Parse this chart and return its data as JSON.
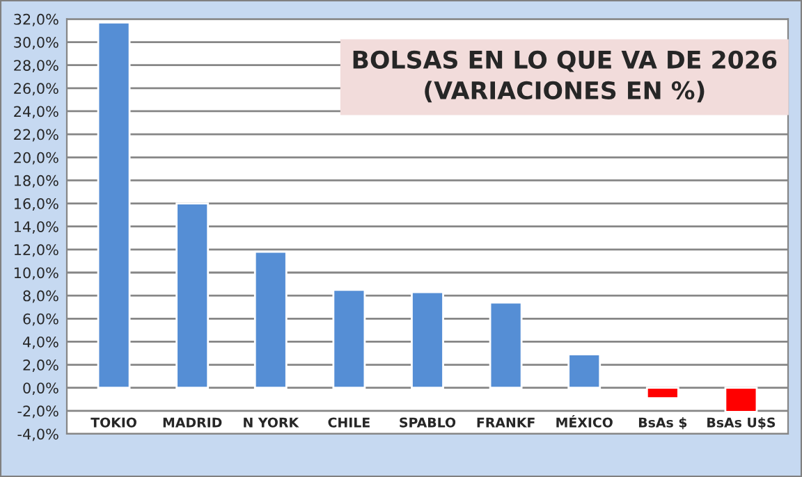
{
  "chart_data": {
    "type": "bar",
    "title": "BOLSAS EN LO QUE VA DE 2026\n(VARIACIONES EN %)",
    "categories": [
      "TOKIO",
      "MADRID",
      "N YORK",
      "CHILE",
      "SPABLO",
      "FRANKF",
      "MÉXICO",
      "BsAs $",
      "BsAs U$S"
    ],
    "values": [
      31.7,
      16.0,
      11.8,
      8.5,
      8.3,
      7.4,
      2.9,
      -0.9,
      -2.1
    ],
    "colors": [
      "#558ed5",
      "#558ed5",
      "#558ed5",
      "#558ed5",
      "#558ed5",
      "#558ed5",
      "#558ed5",
      "#ff0000",
      "#ff0000"
    ],
    "ylim": [
      -4,
      32
    ],
    "yticks": [
      {
        "value": -4,
        "label": "-4,0%"
      },
      {
        "value": -2,
        "label": "-2,0%"
      },
      {
        "value": 0,
        "label": "0,0%"
      },
      {
        "value": 2,
        "label": "2,0%"
      },
      {
        "value": 4,
        "label": "4,0%"
      },
      {
        "value": 6,
        "label": "6,0%"
      },
      {
        "value": 8,
        "label": "8,0%"
      },
      {
        "value": 10,
        "label": "10,0%"
      },
      {
        "value": 12,
        "label": "12,0%"
      },
      {
        "value": 14,
        "label": "14,0%"
      },
      {
        "value": 16,
        "label": "16,0%"
      },
      {
        "value": 18,
        "label": "18,0%"
      },
      {
        "value": 20,
        "label": "20,0%"
      },
      {
        "value": 22,
        "label": "22,0%"
      },
      {
        "value": 24,
        "label": "24,0%"
      },
      {
        "value": 26,
        "label": "26,0%"
      },
      {
        "value": 28,
        "label": "28,0%"
      },
      {
        "value": 30,
        "label": "30,0%"
      },
      {
        "value": 32,
        "label": "32,0%"
      }
    ],
    "grid": "y"
  }
}
